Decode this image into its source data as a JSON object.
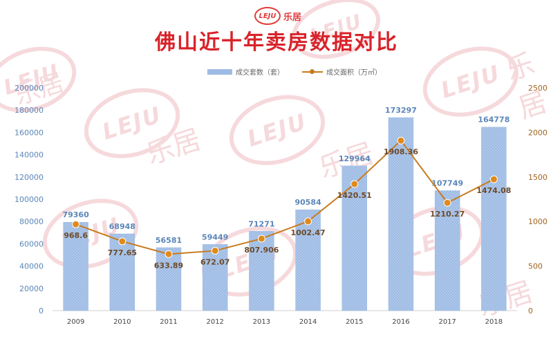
{
  "header": {
    "logo_mark": "LEJU",
    "logo_text": "乐居",
    "title": "佛山近十年卖房数据对比"
  },
  "watermark": {
    "mark": "LEJU",
    "text": "乐居"
  },
  "colors": {
    "bar": "#9dbbe4",
    "line": "#c97a1c",
    "marker": "#e08a1e",
    "title": "#d8232a",
    "bar_label": "#5b86b8",
    "line_label": "#6d4a2a"
  },
  "chart_data": {
    "type": "bar",
    "categories": [
      "2009",
      "2010",
      "2011",
      "2012",
      "2013",
      "2014",
      "2015",
      "2016",
      "2017",
      "2018"
    ],
    "series": [
      {
        "name": "成交套数（套）",
        "type": "bar",
        "axis": "left",
        "values": [
          79360,
          68948,
          56581,
          59449,
          71271,
          90584,
          129964,
          173297,
          107749,
          164778
        ],
        "labels": [
          "79360",
          "68948",
          "56581",
          "59449",
          "71271",
          "90584",
          "129964",
          "173297",
          "107749",
          "164778"
        ]
      },
      {
        "name": "成交面积（万㎡）",
        "type": "line",
        "axis": "right",
        "values": [
          968.6,
          777.65,
          633.89,
          672.07,
          807.906,
          1002.47,
          1420.51,
          1908.36,
          1210.27,
          1474.08
        ],
        "labels": [
          "968.6",
          "777.65",
          "633.89",
          "672.07",
          "807.906",
          "1002.47",
          "1420.51",
          "1908.36",
          "1210.27",
          "1474.08"
        ]
      }
    ],
    "left_axis": {
      "ylim": [
        0,
        200000
      ],
      "ticks": [
        "0",
        "20000",
        "40000",
        "60000",
        "80000",
        "100000",
        "120000",
        "140000",
        "160000",
        "180000",
        "200000"
      ]
    },
    "right_axis": {
      "ylim": [
        0,
        2500
      ],
      "ticks": [
        "0",
        "500",
        "1000",
        "1500",
        "2000",
        "2500"
      ]
    },
    "legend_position": "top-center",
    "grid": false
  }
}
